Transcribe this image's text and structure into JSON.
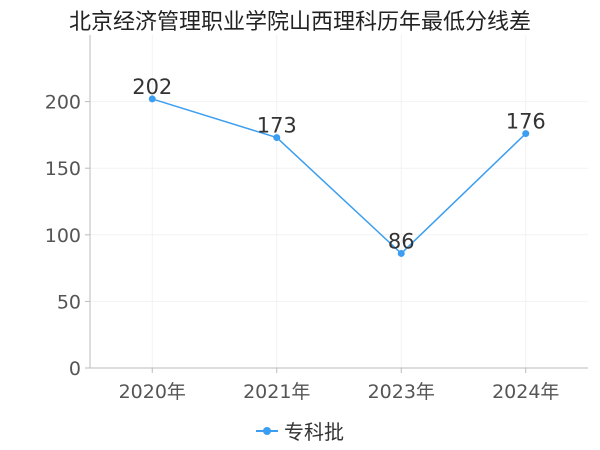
{
  "chart_data": {
    "type": "line",
    "title": "北京经济管理职业学院山西理科历年最低分线差",
    "categories": [
      "2020年",
      "2021年",
      "2023年",
      "2024年"
    ],
    "series": [
      {
        "name": "专科批",
        "values": [
          202,
          173,
          86,
          176
        ],
        "color": "#3b9ef0"
      }
    ],
    "ylim": [
      0,
      250
    ],
    "yticks": [
      0,
      50,
      100,
      150,
      200
    ],
    "xlabel": "",
    "ylabel": "",
    "grid": true,
    "legend_position": "bottom-center"
  }
}
